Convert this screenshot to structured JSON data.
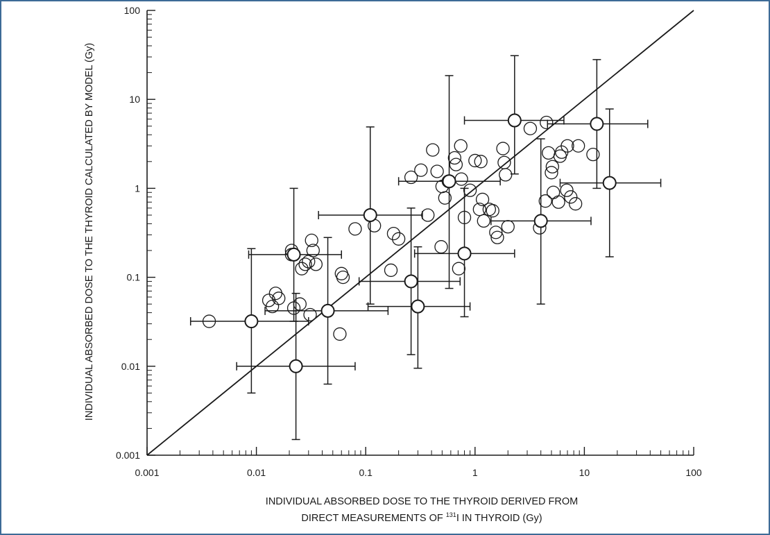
{
  "chart_data": {
    "type": "scatter",
    "title": "",
    "xlabel_line1": "INDIVIDUAL ABSORBED DOSE TO THE THYROID DERIVED FROM",
    "xlabel_line2_pre": "DIRECT MEASUREMENTS OF ",
    "xlabel_line2_sup": "131",
    "xlabel_line2_post": "I IN THYROID (Gy)",
    "ylabel": "INDIVIDUAL ABSORBED DOSE TO THE THYROID CALCULATED BY MODEL (Gy)",
    "xscale": "log",
    "yscale": "log",
    "xlim": [
      0.001,
      100
    ],
    "ylim": [
      0.001,
      100
    ],
    "x_tick_labels": [
      "0.001",
      "0.01",
      "0.1",
      "1",
      "10",
      "100"
    ],
    "y_tick_labels": [
      "0.001",
      "0.01",
      "0.1",
      "1",
      "10",
      "100"
    ],
    "grid": false,
    "reference_line": {
      "from": [
        0.001,
        0.001
      ],
      "to": [
        100,
        100
      ]
    },
    "points": [
      {
        "x": 0.0037,
        "y": 0.032
      },
      {
        "x": 0.013,
        "y": 0.055
      },
      {
        "x": 0.014,
        "y": 0.047
      },
      {
        "x": 0.015,
        "y": 0.066
      },
      {
        "x": 0.016,
        "y": 0.058
      },
      {
        "x": 0.021,
        "y": 0.2
      },
      {
        "x": 0.021,
        "y": 0.18
      },
      {
        "x": 0.022,
        "y": 0.045
      },
      {
        "x": 0.025,
        "y": 0.05
      },
      {
        "x": 0.026,
        "y": 0.125
      },
      {
        "x": 0.028,
        "y": 0.14
      },
      {
        "x": 0.03,
        "y": 0.15
      },
      {
        "x": 0.031,
        "y": 0.038
      },
      {
        "x": 0.032,
        "y": 0.26
      },
      {
        "x": 0.033,
        "y": 0.2
      },
      {
        "x": 0.035,
        "y": 0.14
      },
      {
        "x": 0.06,
        "y": 0.11
      },
      {
        "x": 0.062,
        "y": 0.1
      },
      {
        "x": 0.058,
        "y": 0.023
      },
      {
        "x": 0.08,
        "y": 0.35
      },
      {
        "x": 0.12,
        "y": 0.38
      },
      {
        "x": 0.17,
        "y": 0.12
      },
      {
        "x": 0.18,
        "y": 0.31
      },
      {
        "x": 0.2,
        "y": 0.27
      },
      {
        "x": 0.26,
        "y": 1.33
      },
      {
        "x": 0.32,
        "y": 1.6
      },
      {
        "x": 0.37,
        "y": 0.5
      },
      {
        "x": 0.41,
        "y": 2.7
      },
      {
        "x": 0.45,
        "y": 1.55
      },
      {
        "x": 0.49,
        "y": 0.22
      },
      {
        "x": 0.5,
        "y": 1.05
      },
      {
        "x": 0.53,
        "y": 0.78
      },
      {
        "x": 0.57,
        "y": 1.2
      },
      {
        "x": 0.65,
        "y": 2.2
      },
      {
        "x": 0.67,
        "y": 1.85
      },
      {
        "x": 0.71,
        "y": 0.125
      },
      {
        "x": 0.74,
        "y": 3.0
      },
      {
        "x": 0.75,
        "y": 1.27
      },
      {
        "x": 0.8,
        "y": 0.47
      },
      {
        "x": 0.9,
        "y": 0.95
      },
      {
        "x": 1.0,
        "y": 2.05
      },
      {
        "x": 1.1,
        "y": 0.58
      },
      {
        "x": 1.13,
        "y": 2.0
      },
      {
        "x": 1.17,
        "y": 0.75
      },
      {
        "x": 1.2,
        "y": 0.43
      },
      {
        "x": 1.35,
        "y": 0.58
      },
      {
        "x": 1.45,
        "y": 0.56
      },
      {
        "x": 1.55,
        "y": 0.32
      },
      {
        "x": 1.6,
        "y": 0.28
      },
      {
        "x": 1.8,
        "y": 2.8
      },
      {
        "x": 1.85,
        "y": 1.95
      },
      {
        "x": 1.9,
        "y": 1.42
      },
      {
        "x": 2.0,
        "y": 0.37
      },
      {
        "x": 3.2,
        "y": 4.7
      },
      {
        "x": 3.9,
        "y": 0.36
      },
      {
        "x": 4.4,
        "y": 0.72
      },
      {
        "x": 4.7,
        "y": 2.5
      },
      {
        "x": 4.5,
        "y": 5.5
      },
      {
        "x": 5.0,
        "y": 1.5
      },
      {
        "x": 5.1,
        "y": 1.75
      },
      {
        "x": 5.2,
        "y": 0.9
      },
      {
        "x": 5.8,
        "y": 0.7
      },
      {
        "x": 6.0,
        "y": 2.3
      },
      {
        "x": 6.2,
        "y": 2.55
      },
      {
        "x": 7.0,
        "y": 3.0
      },
      {
        "x": 6.9,
        "y": 0.95
      },
      {
        "x": 7.5,
        "y": 0.8
      },
      {
        "x": 8.3,
        "y": 0.67
      },
      {
        "x": 8.8,
        "y": 3.0
      },
      {
        "x": 12.0,
        "y": 2.4
      }
    ],
    "points_with_error_bars": [
      {
        "x": 0.009,
        "y": 0.032,
        "x_err": [
          0.0025,
          0.03
        ],
        "y_err": [
          0.005,
          0.21
        ]
      },
      {
        "x": 0.022,
        "y": 0.18,
        "x_err": [
          0.0085,
          0.06
        ],
        "y_err": [
          0.032,
          1.0
        ]
      },
      {
        "x": 0.023,
        "y": 0.01,
        "x_err": [
          0.0066,
          0.08
        ],
        "y_err": [
          0.0015,
          0.066
        ]
      },
      {
        "x": 0.045,
        "y": 0.042,
        "x_err": [
          0.012,
          0.16
        ],
        "y_err": [
          0.0063,
          0.28
        ]
      },
      {
        "x": 0.11,
        "y": 0.5,
        "x_err": [
          0.037,
          0.33
        ],
        "y_err": [
          0.05,
          4.9
        ]
      },
      {
        "x": 0.26,
        "y": 0.09,
        "x_err": [
          0.087,
          0.73
        ],
        "y_err": [
          0.0135,
          0.6
        ]
      },
      {
        "x": 0.3,
        "y": 0.047,
        "x_err": [
          0.105,
          0.9
        ],
        "y_err": [
          0.0095,
          0.22
        ]
      },
      {
        "x": 0.58,
        "y": 1.2,
        "x_err": [
          0.2,
          1.7
        ],
        "y_err": [
          0.075,
          18.5
        ]
      },
      {
        "x": 0.8,
        "y": 0.185,
        "x_err": [
          0.28,
          2.3
        ],
        "y_err": [
          0.036,
          1.0
        ]
      },
      {
        "x": 2.3,
        "y": 5.8,
        "x_err": [
          0.8,
          6.5
        ],
        "y_err": [
          1.45,
          31.0
        ]
      },
      {
        "x": 4.0,
        "y": 0.43,
        "x_err": [
          1.4,
          11.5
        ],
        "y_err": [
          0.05,
          3.6
        ]
      },
      {
        "x": 13.0,
        "y": 5.3,
        "x_err": [
          4.6,
          38.0
        ],
        "y_err": [
          1.0,
          28.0
        ]
      },
      {
        "x": 17.0,
        "y": 1.15,
        "x_err": [
          6.0,
          50.0
        ],
        "y_err": [
          0.17,
          7.8
        ]
      }
    ]
  }
}
